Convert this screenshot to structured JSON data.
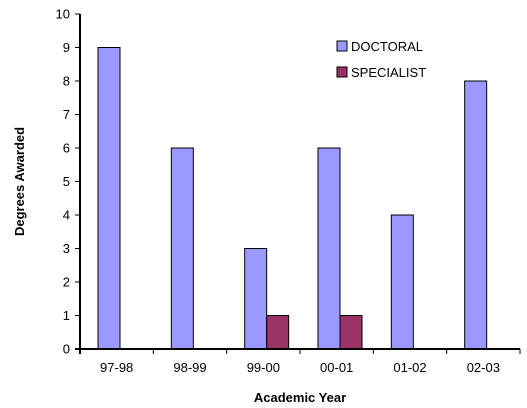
{
  "chart_data": {
    "type": "bar",
    "categories": [
      "97-98",
      "98-99",
      "99-00",
      "00-01",
      "01-02",
      "02-03"
    ],
    "series": [
      {
        "name": "DOCTORAL",
        "values": [
          9,
          6,
          3,
          6,
          4,
          8
        ],
        "color": "#9999ff"
      },
      {
        "name": "SPECIALIST",
        "values": [
          0,
          0,
          1,
          1,
          0,
          0
        ],
        "color": "#993366"
      }
    ],
    "xlabel": "Academic Year",
    "ylabel": "Degrees Awarded",
    "ylim": [
      0,
      10
    ],
    "yticks": [
      0,
      1,
      2,
      3,
      4,
      5,
      6,
      7,
      8,
      9,
      10
    ],
    "grid": false,
    "legend_position": "top-right"
  }
}
